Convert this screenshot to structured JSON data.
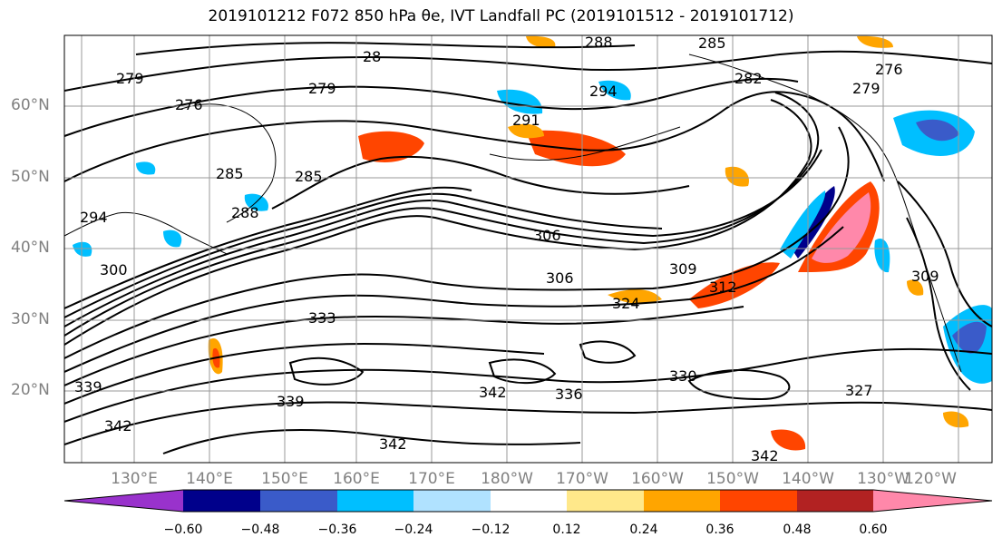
{
  "title": "2019101212 F072 850 hPa θe, IVT Landfall PC (2019101512 - 2019101712)",
  "map": {
    "lat_labels": [
      "60°N",
      "50°N",
      "40°N",
      "30°N",
      "20°N"
    ],
    "lon_labels": [
      "130°E",
      "140°E",
      "150°E",
      "160°E",
      "170°E",
      "180°W",
      "170°W",
      "160°W",
      "150°W",
      "140°W",
      "130°W",
      "120°W"
    ],
    "contour_labels": [
      "279",
      "276",
      "279",
      "28",
      "285",
      "285",
      "288",
      "291",
      "294",
      "288",
      "285",
      "282",
      "276",
      "279",
      "294",
      "300",
      "306",
      "306",
      "309",
      "312",
      "324",
      "333",
      "309",
      "339",
      "339",
      "342",
      "342",
      "342",
      "330",
      "336",
      "327",
      "342"
    ]
  },
  "colorbar": {
    "colors": [
      "#9932cc",
      "#00008b",
      "#3a5bc9",
      "#00bfff",
      "#b0e2ff",
      "#ffffff",
      "#ffe88a",
      "#ffa500",
      "#ff4500",
      "#b22222",
      "#ff88aa"
    ],
    "tick_labels": [
      "−0.60",
      "−0.48",
      "−0.36",
      "−0.24",
      "−0.12",
      "0.12",
      "0.24",
      "0.36",
      "0.48",
      "0.60"
    ]
  }
}
